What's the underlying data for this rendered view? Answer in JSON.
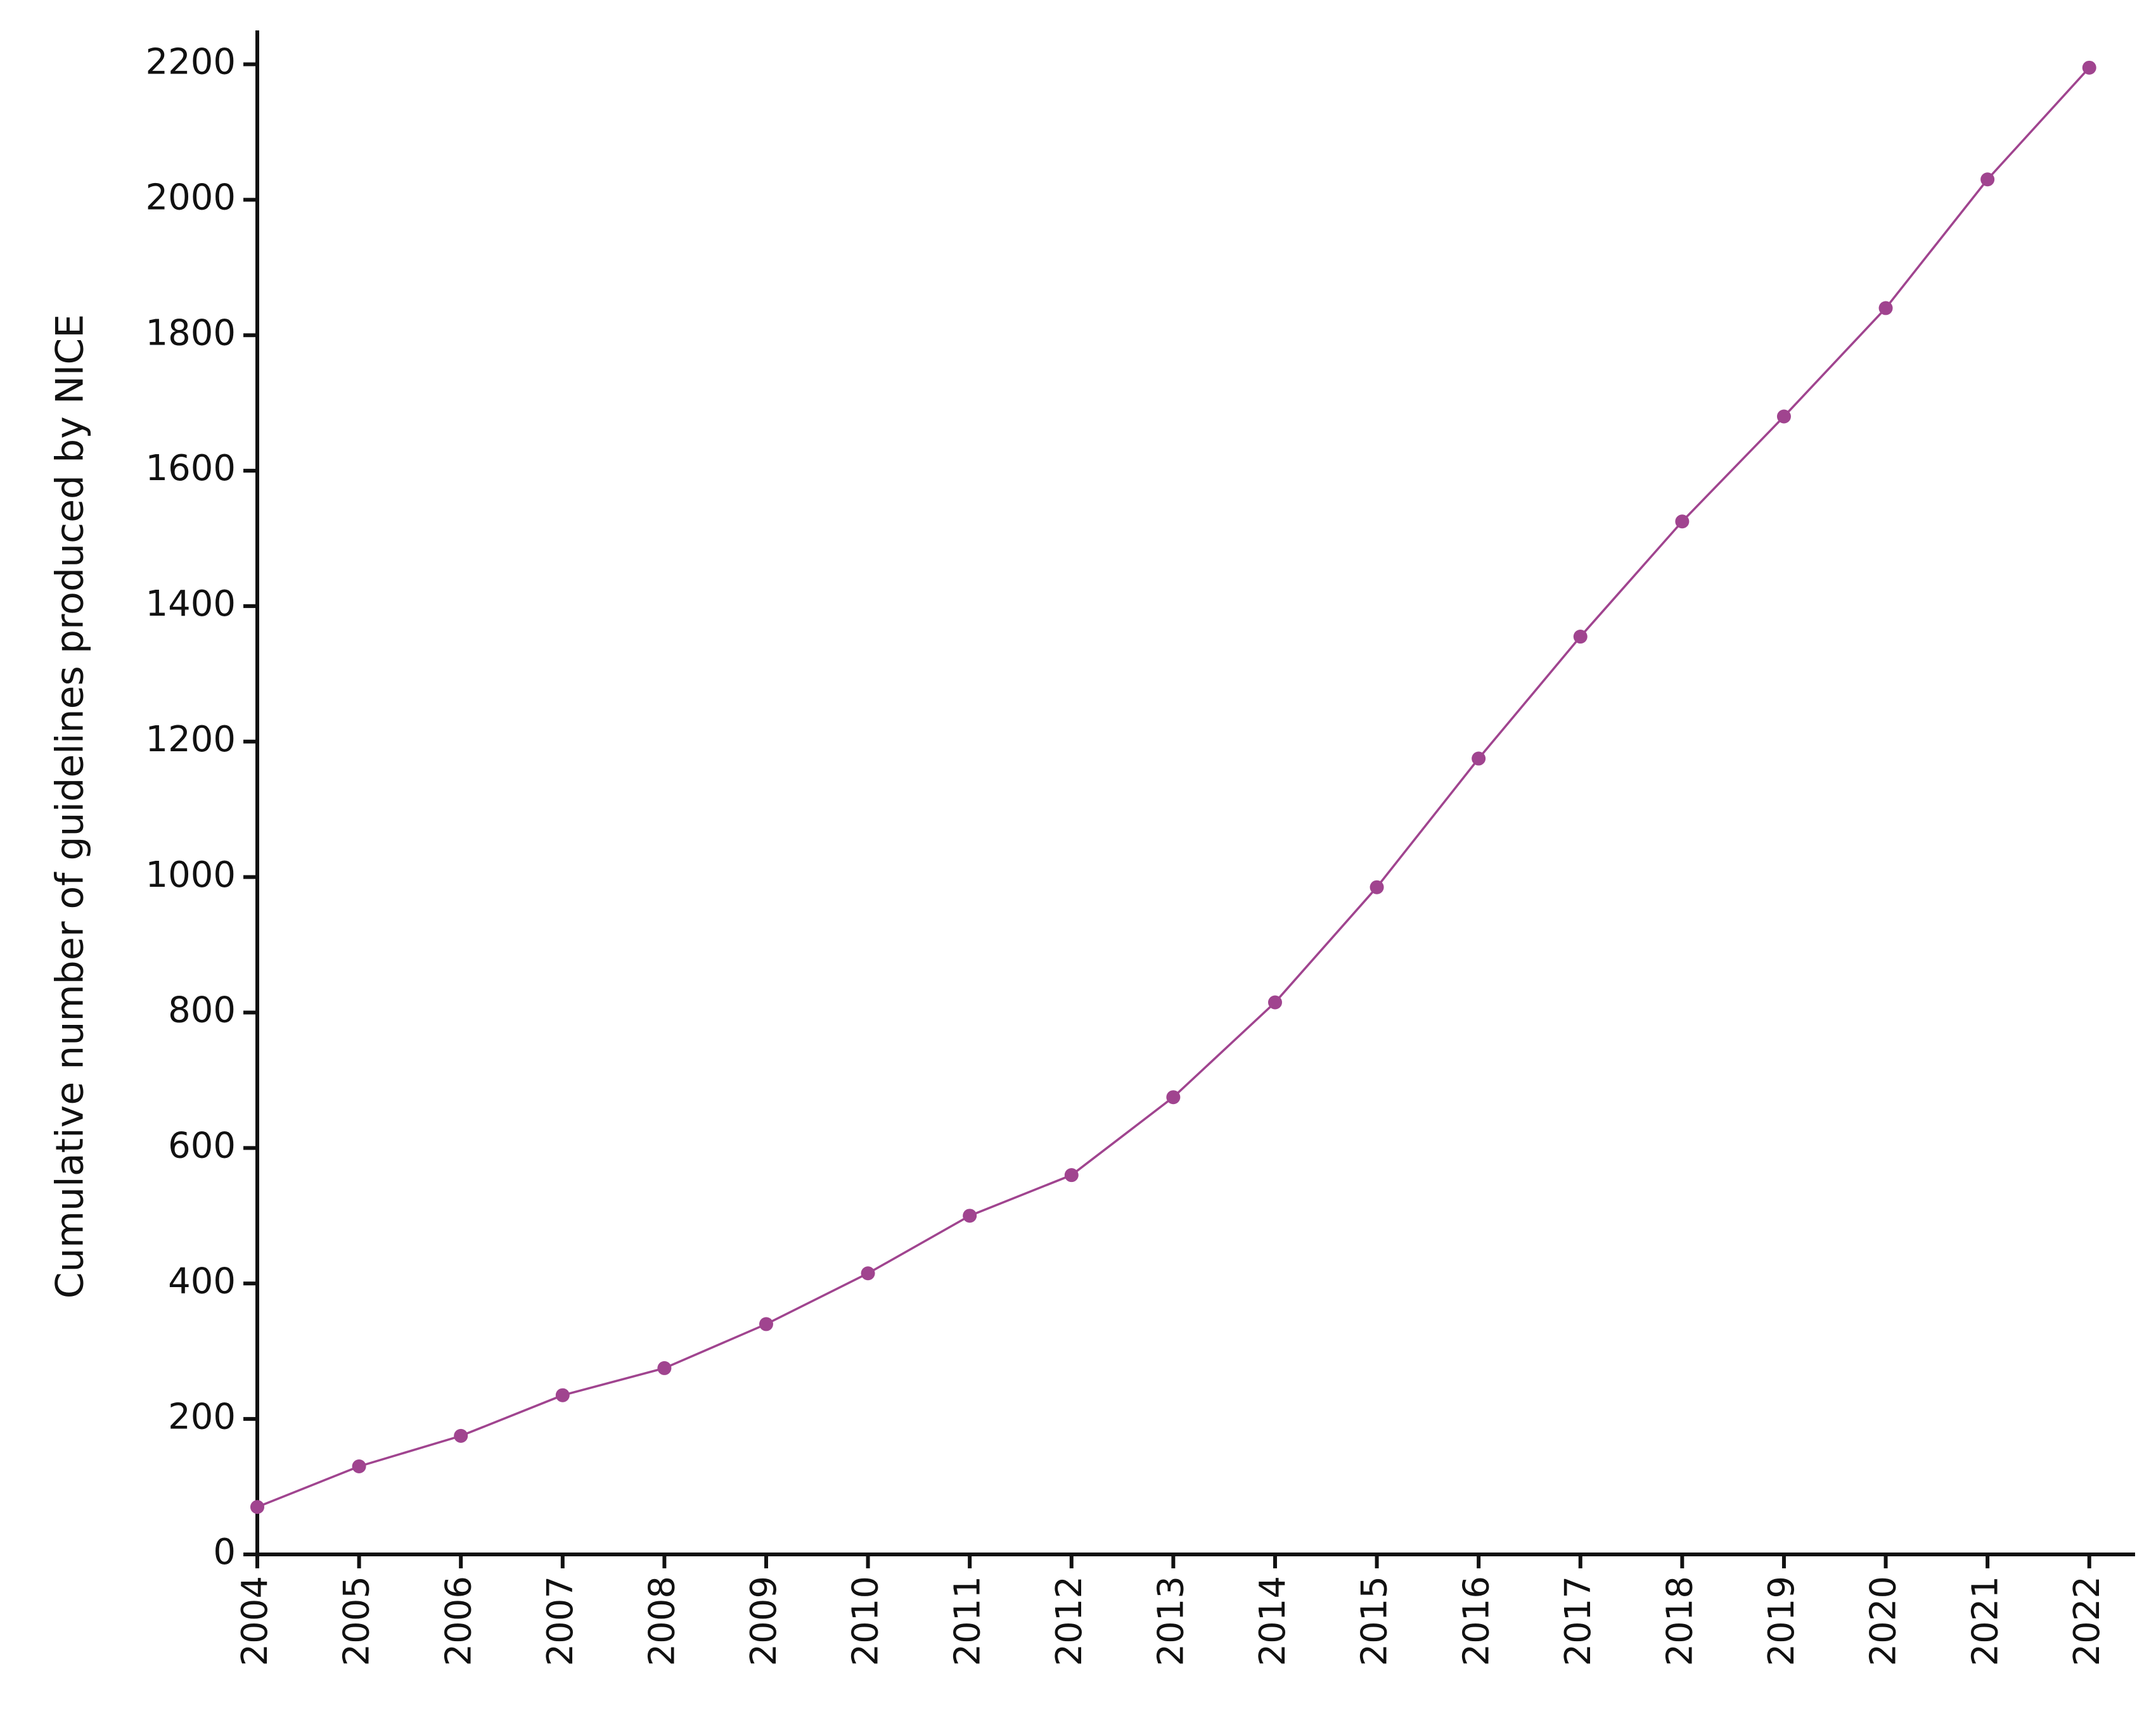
{
  "chart_data": {
    "type": "line",
    "ylabel": "Cumulative number of guidelines produced by NICE",
    "x": [
      2004,
      2005,
      2006,
      2007,
      2008,
      2009,
      2010,
      2011,
      2012,
      2013,
      2014,
      2015,
      2016,
      2017,
      2018,
      2019,
      2020,
      2021,
      2022
    ],
    "series": [
      {
        "color": "#a0448f",
        "values": [
          70,
          130,
          175,
          235,
          275,
          340,
          415,
          500,
          560,
          675,
          815,
          985,
          1175,
          1355,
          1525,
          1680,
          1840,
          2030,
          2195
        ]
      }
    ],
    "xlim": [
      2004,
      2022.45
    ],
    "xticks": [
      2004,
      2005,
      2006,
      2007,
      2008,
      2009,
      2010,
      2011,
      2012,
      2013,
      2014,
      2015,
      2016,
      2017,
      2018,
      2019,
      2020,
      2021,
      2022
    ],
    "ylim": [
      0,
      2250
    ],
    "yticks": [
      0,
      200,
      400,
      600,
      800,
      1000,
      1200,
      1400,
      1600,
      1800,
      2000,
      2200
    ],
    "grid": false
  }
}
